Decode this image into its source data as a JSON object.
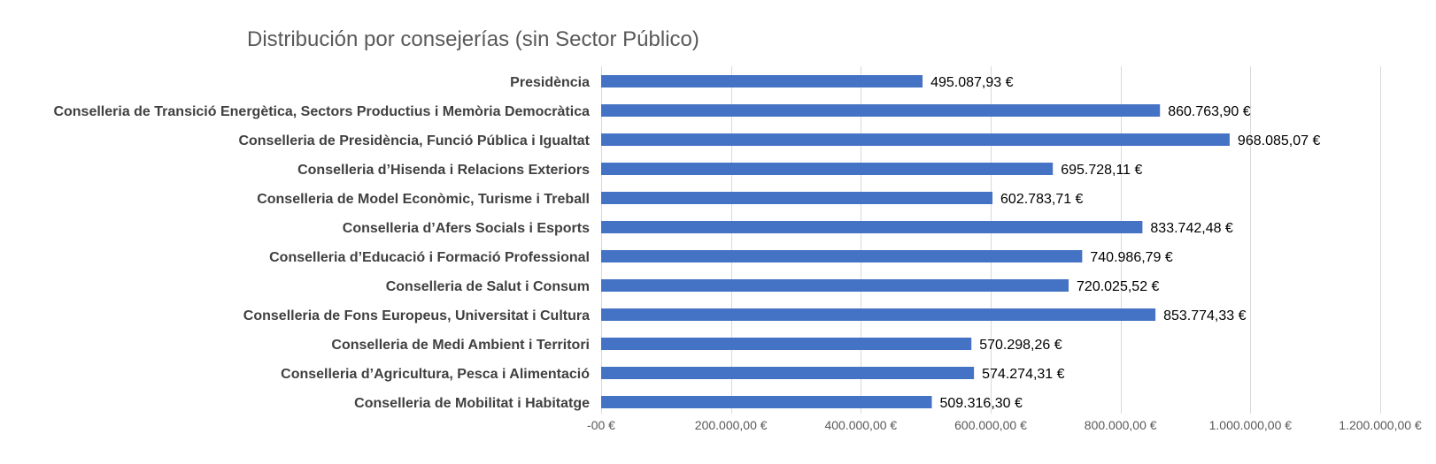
{
  "colors": {
    "bar": "#4472c4",
    "grid": "#d9d9d9",
    "title": "#595959",
    "category_text": "#404040",
    "tick_text": "#595959",
    "data_label_text": "#000000"
  },
  "chart_data": {
    "type": "bar",
    "orientation": "horizontal",
    "title": "Distribución por consejerías (sin Sector Público)",
    "xlabel": "",
    "ylabel": "",
    "xlim": [
      0,
      1200000
    ],
    "grid": true,
    "legend": "none",
    "categories": [
      "Presidència",
      "Conselleria de Transició Energètica, Sectors Productius i Memòria Democràtica",
      "Conselleria de Presidència, Funció Pública i Igualtat",
      "Conselleria d’Hisenda i Relacions Exteriors",
      "Conselleria de Model Econòmic, Turisme i Treball",
      "Conselleria d’Afers Socials i Esports",
      "Conselleria d’Educació i Formació Professional",
      "Conselleria de Salut i Consum",
      "Conselleria de Fons Europeus, Universitat i Cultura",
      "Conselleria de Medi Ambient i Territori",
      "Conselleria d’Agricultura, Pesca i Alimentació",
      "Conselleria de Mobilitat i Habitatge"
    ],
    "values": [
      495087.93,
      860763.9,
      968085.07,
      695728.11,
      602783.71,
      833742.48,
      740986.79,
      720025.52,
      853774.33,
      570298.26,
      574274.31,
      509316.3
    ],
    "value_labels": [
      "495.087,93 €",
      "860.763,90 €",
      "968.085,07 €",
      "695.728,11 €",
      "602.783,71 €",
      "833.742,48 €",
      "740.986,79 €",
      "720.025,52 €",
      "853.774,33 €",
      "570.298,26 €",
      "574.274,31 €",
      "509.316,30 €"
    ],
    "x_ticks": [
      0,
      200000,
      400000,
      600000,
      800000,
      1000000,
      1200000
    ],
    "x_tick_labels": [
      "-00 €",
      "200.000,00 €",
      "400.000,00 €",
      "600.000,00 €",
      "800.000,00 €",
      "1.000.000,00 €",
      "1.200.000,00 €"
    ]
  }
}
